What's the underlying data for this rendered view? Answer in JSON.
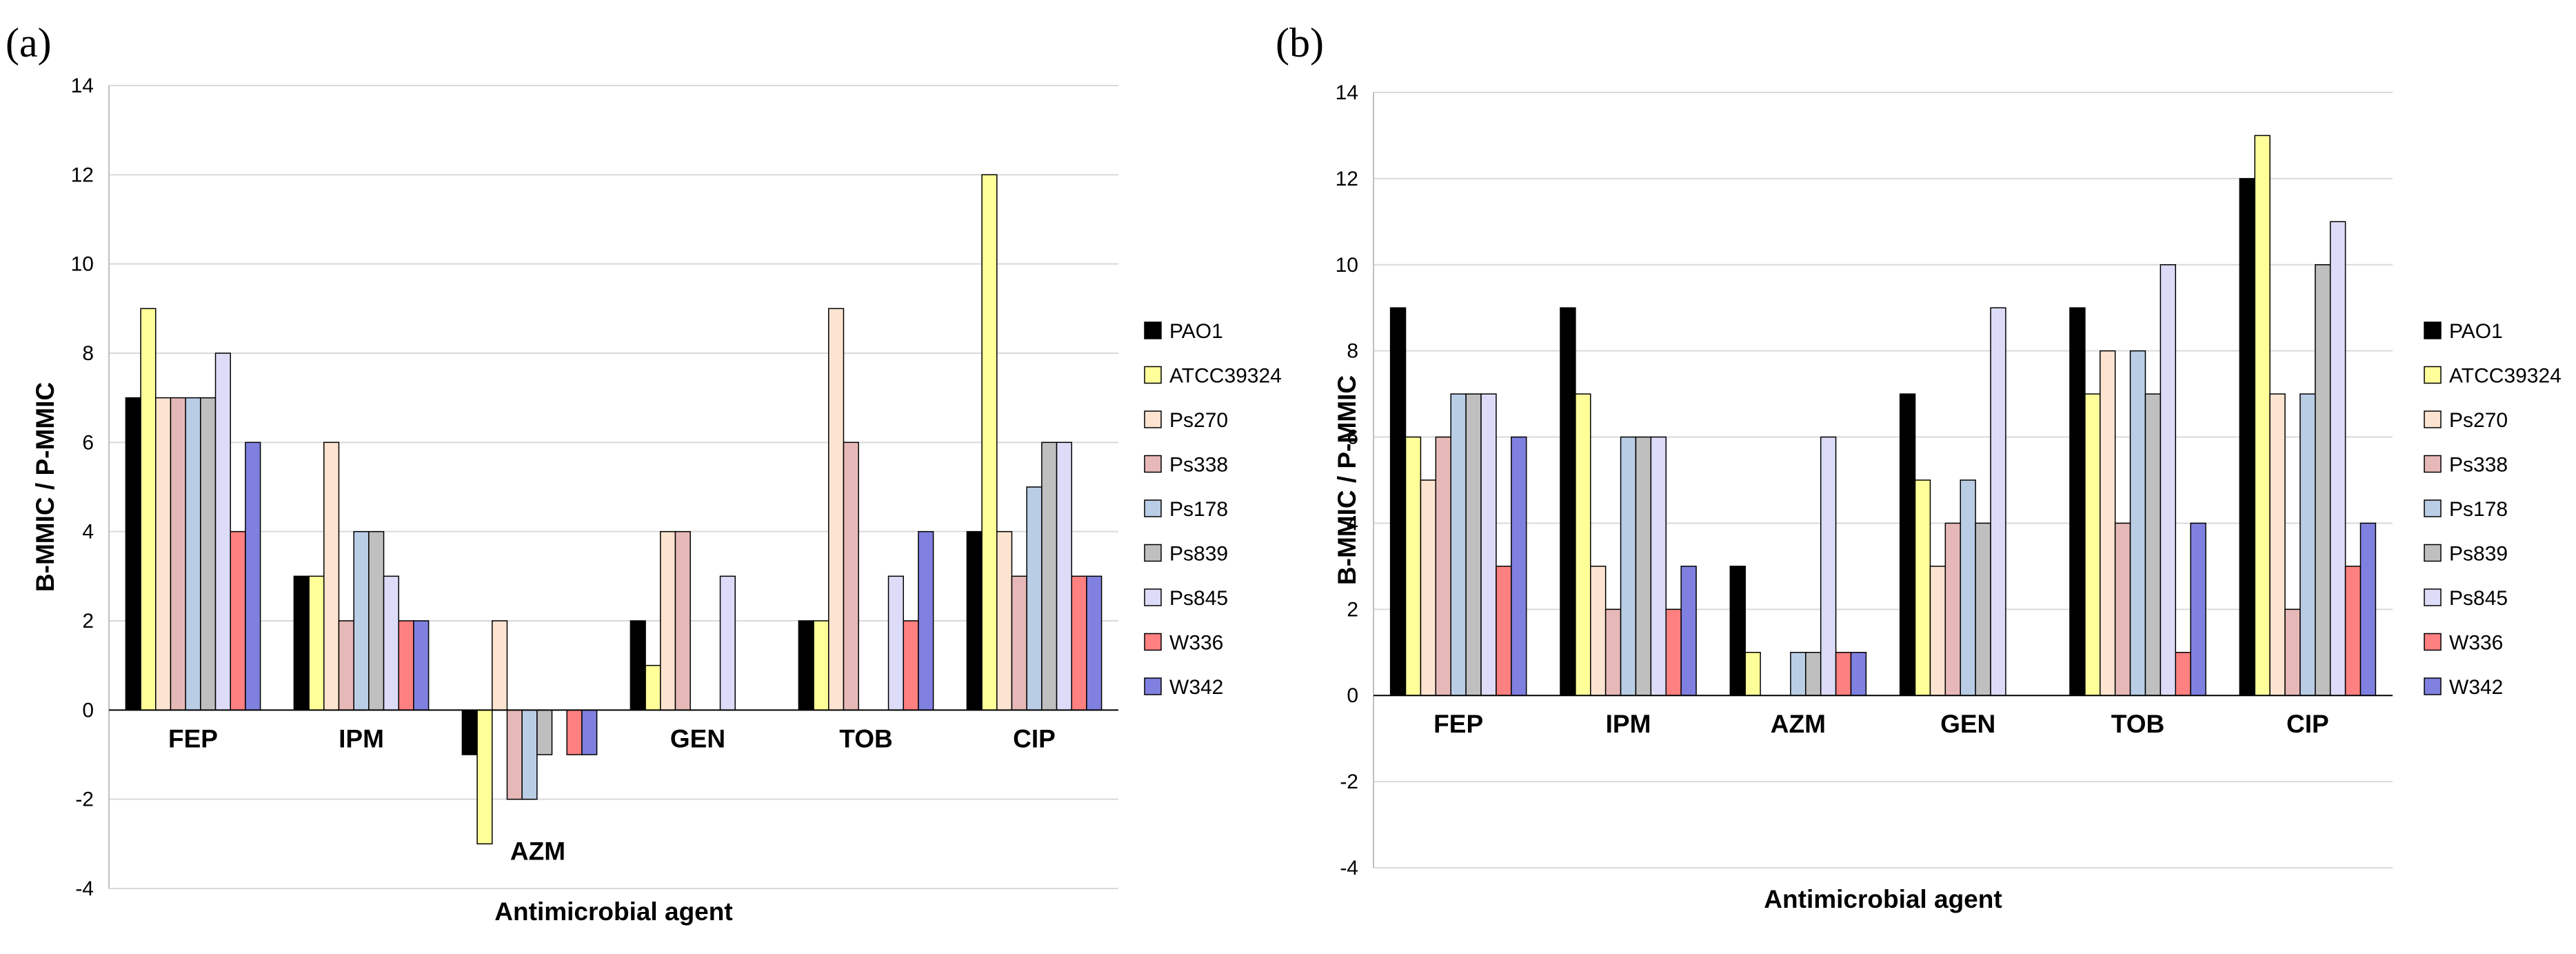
{
  "colors": {
    "PAO1": "#000000",
    "ATCC39324": "#ffff99",
    "Ps270": "#fde4d0",
    "Ps338": "#e6b9b8",
    "Ps178": "#b9cde5",
    "Ps839": "#bfbfbf",
    "Ps845": "#dcdcf8",
    "W336": "#ff8080",
    "W342": "#8080e0"
  },
  "chart_data": [
    {
      "panel_label": "(a)",
      "type": "bar",
      "ylabel": "B-MMIC / P-MMIC",
      "xlabel": "Antimicrobial agent",
      "ylim": [
        -4,
        14
      ],
      "yticks": [
        -4,
        -2,
        0,
        2,
        4,
        6,
        8,
        10,
        12,
        14
      ],
      "grid": true,
      "legend_position": "right",
      "categories": [
        "FEP",
        "IPM",
        "AZM",
        "GEN",
        "TOB",
        "CIP"
      ],
      "series": [
        {
          "name": "PAO1",
          "values": [
            7,
            3,
            -1,
            2,
            2,
            4
          ]
        },
        {
          "name": "ATCC39324",
          "values": [
            9,
            3,
            -3,
            1,
            2,
            12
          ]
        },
        {
          "name": "Ps270",
          "values": [
            7,
            6,
            2,
            4,
            9,
            4
          ]
        },
        {
          "name": "Ps338",
          "values": [
            7,
            2,
            -2,
            4,
            6,
            3
          ]
        },
        {
          "name": "Ps178",
          "values": [
            7,
            4,
            -2,
            0,
            0,
            5
          ]
        },
        {
          "name": "Ps839",
          "values": [
            7,
            4,
            -1,
            0,
            0,
            6
          ]
        },
        {
          "name": "Ps845",
          "values": [
            8,
            3,
            0,
            3,
            3,
            6
          ]
        },
        {
          "name": "W336",
          "values": [
            4,
            2,
            -1,
            0,
            2,
            3
          ]
        },
        {
          "name": "W342",
          "values": [
            6,
            2,
            -1,
            0,
            4,
            3
          ]
        }
      ]
    },
    {
      "panel_label": "(b)",
      "type": "bar",
      "ylabel": "B-MMIC / P-MMIC",
      "xlabel": "Antimicrobial agent",
      "ylim": [
        -4,
        14
      ],
      "yticks": [
        -4,
        -2,
        0,
        2,
        4,
        6,
        8,
        10,
        12,
        14
      ],
      "grid": true,
      "legend_position": "right",
      "categories": [
        "FEP",
        "IPM",
        "AZM",
        "GEN",
        "TOB",
        "CIP"
      ],
      "series": [
        {
          "name": "PAO1",
          "values": [
            9,
            9,
            3,
            7,
            9,
            12
          ]
        },
        {
          "name": "ATCC39324",
          "values": [
            6,
            7,
            1,
            5,
            7,
            13
          ]
        },
        {
          "name": "Ps270",
          "values": [
            5,
            3,
            0,
            3,
            8,
            7
          ]
        },
        {
          "name": "Ps338",
          "values": [
            6,
            2,
            0,
            4,
            4,
            2
          ]
        },
        {
          "name": "Ps178",
          "values": [
            7,
            6,
            1,
            5,
            8,
            7
          ]
        },
        {
          "name": "Ps839",
          "values": [
            7,
            6,
            1,
            4,
            7,
            10
          ]
        },
        {
          "name": "Ps845",
          "values": [
            7,
            6,
            6,
            9,
            10,
            11
          ]
        },
        {
          "name": "W336",
          "values": [
            3,
            2,
            1,
            0,
            1,
            3
          ]
        },
        {
          "name": "W342",
          "values": [
            6,
            3,
            1,
            0,
            4,
            4
          ]
        }
      ]
    }
  ]
}
